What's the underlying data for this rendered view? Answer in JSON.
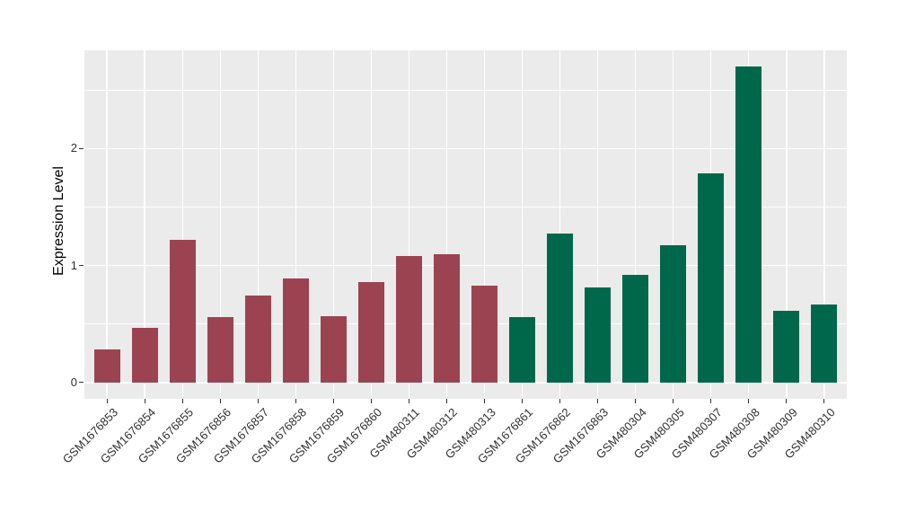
{
  "chart_data": {
    "type": "bar",
    "title": "",
    "xlabel": "",
    "ylabel": "Expression Level",
    "categories": [
      "GSM1676853",
      "GSM1676854",
      "GSM1676855",
      "GSM1676856",
      "GSM1676857",
      "GSM1676858",
      "GSM1676859",
      "GSM1676860",
      "GSM480311",
      "GSM480312",
      "GSM480313",
      "GSM1676861",
      "GSM1676862",
      "GSM1676863",
      "GSM480304",
      "GSM480305",
      "GSM480307",
      "GSM480308",
      "GSM480309",
      "GSM480310"
    ],
    "values": [
      0.28,
      0.47,
      1.22,
      0.56,
      0.74,
      0.89,
      0.57,
      0.86,
      1.08,
      1.1,
      0.83,
      0.56,
      1.27,
      0.81,
      0.92,
      1.17,
      1.79,
      2.7,
      0.61,
      0.67
    ],
    "groups": [
      "maroon",
      "maroon",
      "maroon",
      "maroon",
      "maroon",
      "maroon",
      "maroon",
      "maroon",
      "maroon",
      "maroon",
      "maroon",
      "green",
      "green",
      "green",
      "green",
      "green",
      "green",
      "green",
      "green",
      "green"
    ],
    "group_colors": {
      "maroon": "#9C4352",
      "green": "#00684A"
    },
    "ylim": [
      -0.14,
      2.84
    ],
    "yticks": [
      0,
      1,
      2
    ],
    "yticks_minor": [
      0.5,
      1.5,
      2.5
    ],
    "x_tick_rotation_deg": 45,
    "legend": "none",
    "grid": true,
    "panel_bg": "#EBEBEB",
    "grid_color": "#FFFFFF",
    "axis_text_color": "#303030",
    "tick_mark_color": "#333333"
  }
}
